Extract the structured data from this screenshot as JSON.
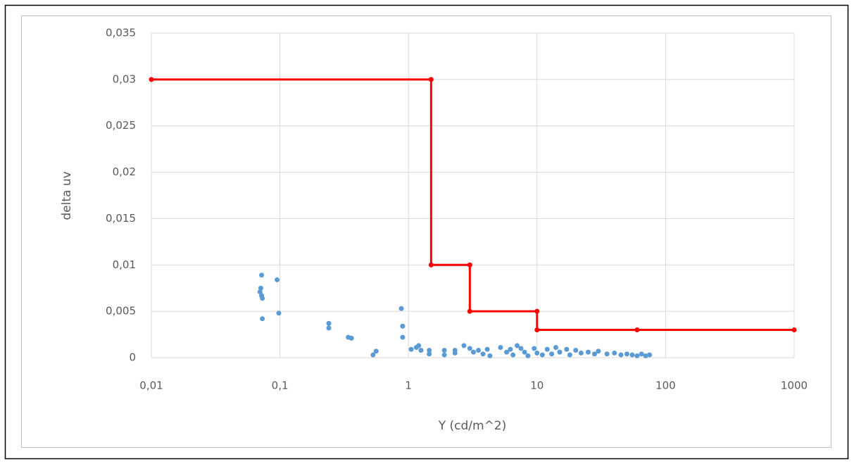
{
  "chart_data": {
    "type": "scatter",
    "xlabel": "Y (cd/m^2)",
    "ylabel": "delta uv",
    "xscale": "log",
    "grid": true,
    "xlim": [
      0.01,
      1000
    ],
    "xticks": [
      {
        "value": 0.01,
        "label": "0,01"
      },
      {
        "value": 0.1,
        "label": "0,1"
      },
      1,
      10,
      100,
      1000
    ],
    "ylim": [
      0,
      0.035
    ],
    "yticks": [
      0,
      {
        "value": 0.005,
        "label": "0,005"
      },
      {
        "value": 0.01,
        "label": "0,01"
      },
      {
        "value": 0.015,
        "label": "0,015"
      },
      {
        "value": 0.02,
        "label": "0,02"
      },
      {
        "value": 0.025,
        "label": "0,025"
      },
      {
        "value": 0.03,
        "label": "0,03"
      },
      {
        "value": 0.035,
        "label": "0,035"
      }
    ],
    "series": [
      {
        "color": "#5b9bd5",
        "mode": "markers",
        "x": [
          0.072,
          0.071,
          0.07,
          0.072,
          0.073,
          0.073,
          0.095,
          0.098,
          0.24,
          0.24,
          0.34,
          0.36,
          0.53,
          0.56,
          0.88,
          0.9,
          0.9,
          1.05,
          1.15,
          1.2,
          1.25,
          1.45,
          1.45,
          1.9,
          1.9,
          2.3,
          2.3,
          2.7,
          3,
          3.2,
          3.5,
          3.8,
          4.1,
          4.3,
          5.2,
          5.8,
          6.2,
          6.5,
          7,
          7.5,
          8,
          8.5,
          9.5,
          10,
          11,
          12,
          13,
          14,
          15,
          17,
          18,
          20,
          22,
          25,
          28,
          30,
          35,
          40,
          45,
          50,
          55,
          60,
          65,
          70,
          75
        ],
        "values": [
          0.0089,
          0.0075,
          0.0071,
          0.0067,
          0.0064,
          0.0042,
          0.0084,
          0.0048,
          0.0037,
          0.0032,
          0.0022,
          0.0021,
          0.0003,
          0.0007,
          0.0053,
          0.0034,
          0.0022,
          0.0009,
          0.0011,
          0.0013,
          0.0008,
          0.0008,
          0.0004,
          0.0008,
          0.0003,
          0.0008,
          0.0005,
          0.0013,
          0.001,
          0.0006,
          0.0008,
          0.0004,
          0.0009,
          0.0002,
          0.0011,
          0.0006,
          0.0009,
          0.0003,
          0.0013,
          0.001,
          0.0006,
          0.0002,
          0.001,
          0.0005,
          0.0003,
          0.0009,
          0.0004,
          0.0011,
          0.0006,
          0.0009,
          0.0003,
          0.0008,
          0.0005,
          0.0006,
          0.0004,
          0.0007,
          0.0004,
          0.0005,
          0.0003,
          0.0004,
          0.0003,
          0.0002,
          0.0004,
          0.0002,
          0.0003
        ]
      },
      {
        "color": "#ff0000",
        "mode": "lines+markers",
        "x": [
          0.01,
          1.5,
          1.5,
          3,
          3,
          10,
          10,
          60,
          1000
        ],
        "values": [
          0.03,
          0.03,
          0.01,
          0.01,
          0.005,
          0.005,
          0.003,
          0.003,
          0.003
        ]
      }
    ]
  }
}
